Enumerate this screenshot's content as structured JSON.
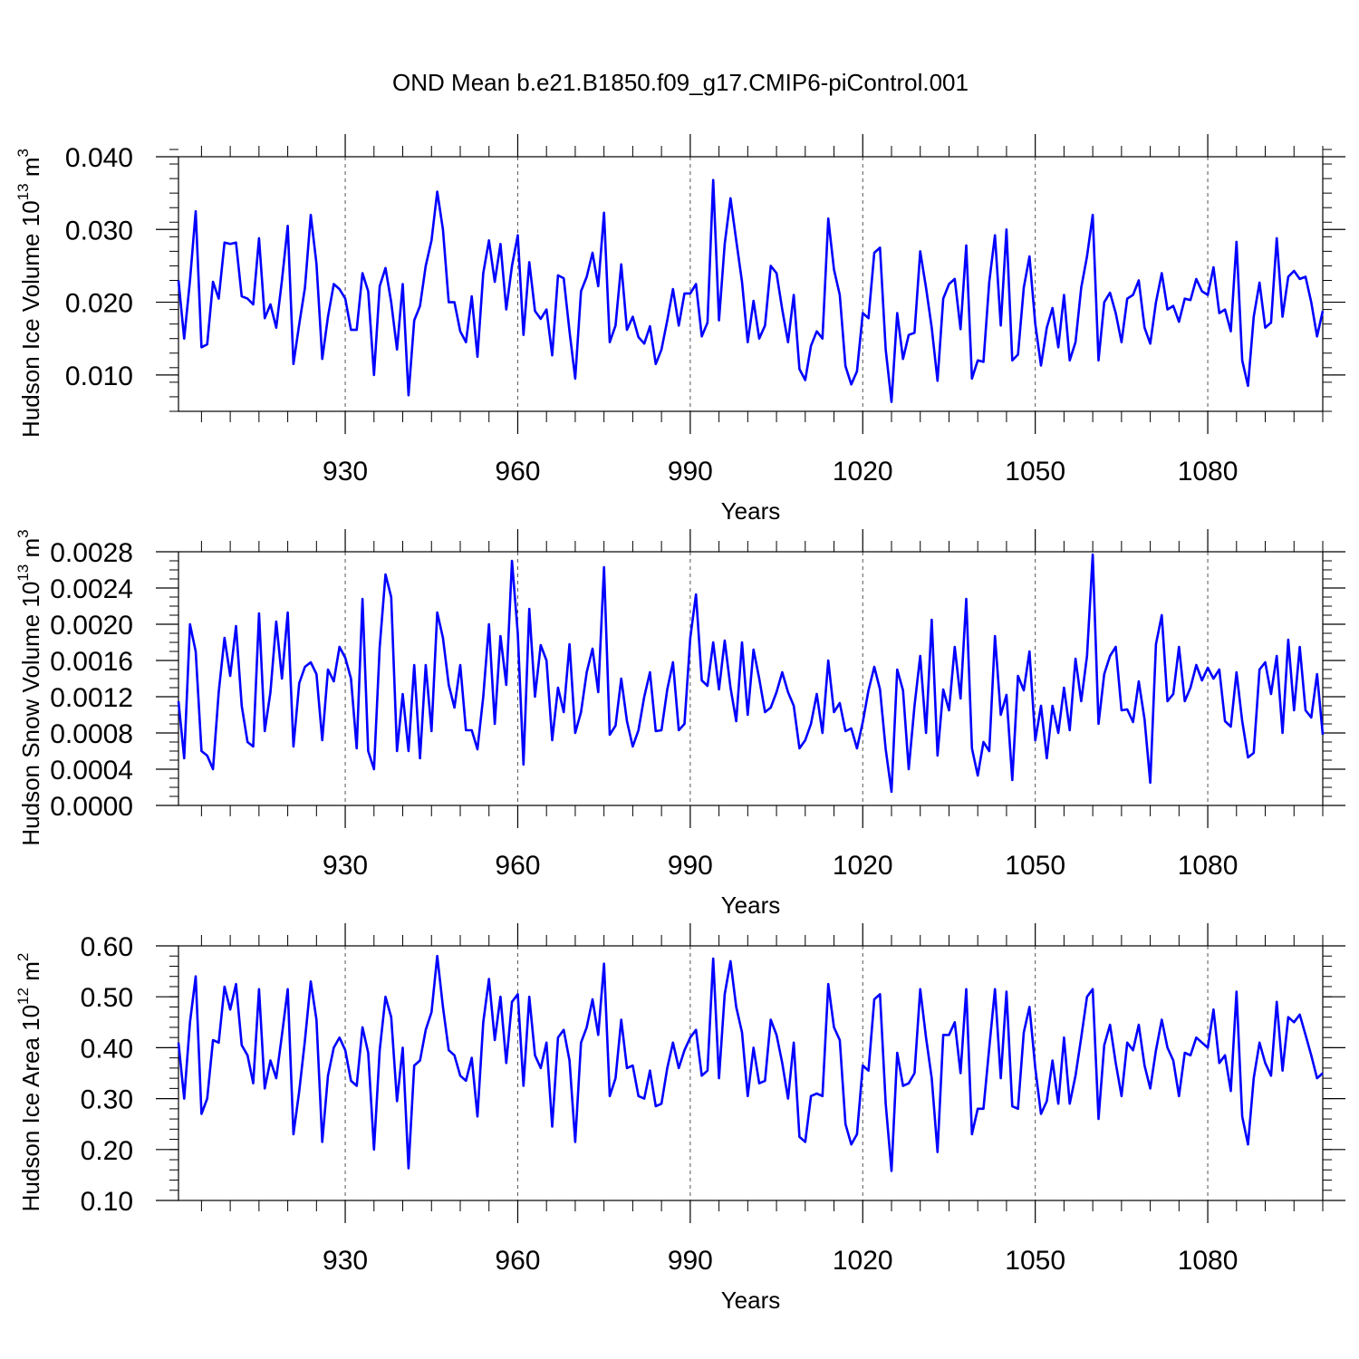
{
  "figure_title": "OND Mean b.e21.B1850.f09_g17.CMIP6-piControl.001",
  "colors": {
    "line": "#0000ff",
    "axes": "#000000",
    "grid": "#555555"
  },
  "chart_data": [
    {
      "type": "line",
      "title": "OND Mean b.e21.B1850.f09_g17.CMIP6-piControl.001",
      "ylabel": "Hudson Ice Volume 10",
      "ylabel_sup": "13",
      "ylabel_unit": " m",
      "ylabel_unit_sup": "3",
      "xlabel": "Years",
      "xlim": [
        901,
        1100
      ],
      "ylim": [
        0.005,
        0.04
      ],
      "x_ticks": [
        930,
        960,
        990,
        1020,
        1050,
        1080
      ],
      "x_tick_labels": [
        "930",
        "960",
        "990",
        "1020",
        "1050",
        "1080"
      ],
      "y_ticks": [
        0.01,
        0.02,
        0.03,
        0.04
      ],
      "y_tick_labels": [
        "0.010",
        "0.020",
        "0.030",
        "0.040"
      ],
      "y_minor_step": 0.002,
      "x_start": 901,
      "series": [
        {
          "name": "Hudson Ice Volume",
          "values": [
            0.023,
            0.015,
            0.023,
            0.0325,
            0.0138,
            0.0142,
            0.0228,
            0.0205,
            0.0282,
            0.028,
            0.0282,
            0.0208,
            0.0205,
            0.0197,
            0.0288,
            0.0178,
            0.0197,
            0.0165,
            0.023,
            0.0305,
            0.0115,
            0.017,
            0.022,
            0.032,
            0.0253,
            0.0122,
            0.018,
            0.0225,
            0.0218,
            0.0205,
            0.0162,
            0.0162,
            0.024,
            0.0215,
            0.01,
            0.0222,
            0.0247,
            0.02,
            0.0135,
            0.0225,
            0.0072,
            0.0175,
            0.0195,
            0.025,
            0.0285,
            0.0352,
            0.03,
            0.02,
            0.02,
            0.016,
            0.0145,
            0.0208,
            0.0125,
            0.024,
            0.0285,
            0.0228,
            0.028,
            0.019,
            0.025,
            0.0292,
            0.0155,
            0.0255,
            0.0188,
            0.0177,
            0.019,
            0.0127,
            0.0237,
            0.0233,
            0.016,
            0.0095,
            0.0215,
            0.0235,
            0.0268,
            0.0222,
            0.0323,
            0.0145,
            0.0168,
            0.0252,
            0.0162,
            0.018,
            0.0152,
            0.0143,
            0.0167,
            0.0115,
            0.0135,
            0.0175,
            0.0218,
            0.0168,
            0.0212,
            0.0212,
            0.0225,
            0.0153,
            0.0172,
            0.0368,
            0.0175,
            0.028,
            0.0343,
            0.0285,
            0.0228,
            0.0145,
            0.0202,
            0.015,
            0.0168,
            0.025,
            0.024,
            0.019,
            0.0145,
            0.021,
            0.0108,
            0.0093,
            0.014,
            0.016,
            0.015,
            0.0315,
            0.0245,
            0.021,
            0.0112,
            0.0087,
            0.0105,
            0.0185,
            0.0178,
            0.0268,
            0.0275,
            0.0135,
            0.0063,
            0.0185,
            0.0122,
            0.0155,
            0.0158,
            0.027,
            0.022,
            0.0165,
            0.0092,
            0.0205,
            0.0225,
            0.0232,
            0.0163,
            0.0278,
            0.0095,
            0.012,
            0.0118,
            0.0228,
            0.0292,
            0.0168,
            0.03,
            0.012,
            0.0128,
            0.022,
            0.0263,
            0.017,
            0.0113,
            0.0165,
            0.0192,
            0.0138,
            0.021,
            0.012,
            0.0145,
            0.022,
            0.0263,
            0.032,
            0.012,
            0.02,
            0.0213,
            0.0185,
            0.0145,
            0.0205,
            0.021,
            0.023,
            0.0165,
            0.0143,
            0.02,
            0.024,
            0.019,
            0.0195,
            0.0173,
            0.0205,
            0.0203,
            0.0232,
            0.0215,
            0.021,
            0.0248,
            0.0185,
            0.019,
            0.016,
            0.0283,
            0.012,
            0.0085,
            0.018,
            0.0227,
            0.0165,
            0.0172,
            0.0288,
            0.018,
            0.0235,
            0.0243,
            0.0232,
            0.0235,
            0.02,
            0.0153,
            0.0188
          ]
        }
      ]
    },
    {
      "type": "line",
      "ylabel": "Hudson Snow Volume 10",
      "ylabel_sup": "13",
      "ylabel_unit": " m",
      "ylabel_unit_sup": "3",
      "xlabel": "Years",
      "xlim": [
        901,
        1100
      ],
      "ylim": [
        0,
        0.0028
      ],
      "x_ticks": [
        930,
        960,
        990,
        1020,
        1050,
        1080
      ],
      "x_tick_labels": [
        "930",
        "960",
        "990",
        "1020",
        "1050",
        "1080"
      ],
      "y_ticks": [
        0,
        0.0004,
        0.0008,
        0.0012,
        0.0016,
        0.002,
        0.0024,
        0.0028
      ],
      "y_tick_labels": [
        "0.0000",
        "0.0004",
        "0.0008",
        "0.0012",
        "0.0016",
        "0.0020",
        "0.0024",
        "0.0028"
      ],
      "y_minor_step": 0.0001,
      "x_start": 901,
      "series": [
        {
          "name": "Hudson Snow Volume",
          "values": [
            0.00115,
            0.00052,
            0.002,
            0.0017,
            0.0006,
            0.00055,
            0.0004,
            0.00125,
            0.00185,
            0.00143,
            0.00198,
            0.0011,
            0.0007,
            0.00065,
            0.00212,
            0.00082,
            0.00125,
            0.00203,
            0.0014,
            0.00213,
            0.00065,
            0.00135,
            0.00153,
            0.00158,
            0.00145,
            0.00072,
            0.0015,
            0.00137,
            0.00175,
            0.00163,
            0.0014,
            0.00063,
            0.00228,
            0.0006,
            0.0004,
            0.00175,
            0.00255,
            0.0023,
            0.0006,
            0.00123,
            0.0006,
            0.00155,
            0.00052,
            0.00155,
            0.00082,
            0.00213,
            0.00185,
            0.00133,
            0.00108,
            0.00155,
            0.00083,
            0.00083,
            0.00062,
            0.0012,
            0.002,
            0.0009,
            0.00187,
            0.00133,
            0.0027,
            0.0019,
            0.00045,
            0.00217,
            0.0012,
            0.00177,
            0.0016,
            0.00072,
            0.0013,
            0.00103,
            0.00178,
            0.0008,
            0.00103,
            0.00147,
            0.00173,
            0.00125,
            0.00263,
            0.00078,
            0.00088,
            0.0014,
            0.00093,
            0.00065,
            0.00083,
            0.0012,
            0.00147,
            0.00082,
            0.00083,
            0.00128,
            0.00158,
            0.00083,
            0.0009,
            0.00185,
            0.00233,
            0.00138,
            0.00132,
            0.0018,
            0.00128,
            0.00182,
            0.0013,
            0.00093,
            0.0018,
            0.001,
            0.00172,
            0.0014,
            0.00103,
            0.00108,
            0.00125,
            0.00147,
            0.00125,
            0.0011,
            0.00063,
            0.00072,
            0.0009,
            0.00123,
            0.0008,
            0.0016,
            0.00103,
            0.00113,
            0.00082,
            0.00085,
            0.00063,
            0.00092,
            0.00127,
            0.00153,
            0.00128,
            0.00062,
            0.00015,
            0.0015,
            0.00127,
            0.0004,
            0.0011,
            0.00165,
            0.0008,
            0.00205,
            0.00055,
            0.00128,
            0.00105,
            0.00175,
            0.00118,
            0.00228,
            0.00063,
            0.00033,
            0.0007,
            0.0006,
            0.00187,
            0.001,
            0.00122,
            0.00028,
            0.00143,
            0.00127,
            0.0017,
            0.00072,
            0.0011,
            0.00052,
            0.0011,
            0.0008,
            0.0013,
            0.00083,
            0.00162,
            0.00115,
            0.00165,
            0.00277,
            0.0009,
            0.00145,
            0.00165,
            0.00175,
            0.00105,
            0.00106,
            0.00092,
            0.00137,
            0.00095,
            0.00025,
            0.00178,
            0.0021,
            0.00115,
            0.00123,
            0.00175,
            0.00115,
            0.0013,
            0.00155,
            0.00138,
            0.00152,
            0.0014,
            0.0015,
            0.00093,
            0.00087,
            0.00147,
            0.00093,
            0.00053,
            0.00058,
            0.0015,
            0.00158,
            0.00123,
            0.00165,
            0.0008,
            0.00183,
            0.00105,
            0.00175,
            0.00105,
            0.00097,
            0.00145,
            0.00078
          ]
        }
      ]
    },
    {
      "type": "line",
      "ylabel": "Hudson Ice Area 10",
      "ylabel_sup": "12",
      "ylabel_unit": " m",
      "ylabel_unit_sup": "2",
      "xlabel": "Years",
      "xlim": [
        901,
        1100
      ],
      "ylim": [
        0.1,
        0.6
      ],
      "x_ticks": [
        930,
        960,
        990,
        1020,
        1050,
        1080
      ],
      "x_tick_labels": [
        "930",
        "960",
        "990",
        "1020",
        "1050",
        "1080"
      ],
      "y_ticks": [
        0.1,
        0.2,
        0.3,
        0.4,
        0.5,
        0.6
      ],
      "y_tick_labels": [
        "0.10",
        "0.20",
        "0.30",
        "0.40",
        "0.50",
        "0.60"
      ],
      "y_minor_step": 0.02,
      "x_start": 901,
      "series": [
        {
          "name": "Hudson Ice Area",
          "values": [
            0.41,
            0.3,
            0.45,
            0.54,
            0.27,
            0.3,
            0.415,
            0.41,
            0.52,
            0.475,
            0.525,
            0.405,
            0.385,
            0.33,
            0.515,
            0.32,
            0.375,
            0.34,
            0.425,
            0.515,
            0.23,
            0.315,
            0.415,
            0.53,
            0.455,
            0.215,
            0.345,
            0.4,
            0.42,
            0.395,
            0.335,
            0.325,
            0.44,
            0.39,
            0.2,
            0.395,
            0.5,
            0.46,
            0.295,
            0.4,
            0.163,
            0.365,
            0.375,
            0.435,
            0.47,
            0.58,
            0.48,
            0.395,
            0.385,
            0.345,
            0.335,
            0.38,
            0.265,
            0.45,
            0.535,
            0.415,
            0.5,
            0.37,
            0.49,
            0.505,
            0.325,
            0.5,
            0.385,
            0.36,
            0.41,
            0.245,
            0.42,
            0.435,
            0.375,
            0.215,
            0.41,
            0.44,
            0.495,
            0.425,
            0.565,
            0.305,
            0.34,
            0.455,
            0.36,
            0.365,
            0.305,
            0.3,
            0.355,
            0.285,
            0.29,
            0.36,
            0.41,
            0.36,
            0.395,
            0.42,
            0.435,
            0.345,
            0.355,
            0.575,
            0.34,
            0.505,
            0.57,
            0.48,
            0.43,
            0.305,
            0.4,
            0.33,
            0.335,
            0.455,
            0.425,
            0.37,
            0.3,
            0.41,
            0.225,
            0.215,
            0.305,
            0.31,
            0.305,
            0.525,
            0.44,
            0.415,
            0.25,
            0.21,
            0.23,
            0.365,
            0.355,
            0.495,
            0.505,
            0.29,
            0.158,
            0.39,
            0.325,
            0.33,
            0.35,
            0.515,
            0.42,
            0.34,
            0.195,
            0.425,
            0.425,
            0.45,
            0.35,
            0.515,
            0.23,
            0.28,
            0.28,
            0.4,
            0.515,
            0.34,
            0.51,
            0.285,
            0.28,
            0.43,
            0.48,
            0.36,
            0.27,
            0.295,
            0.375,
            0.29,
            0.42,
            0.29,
            0.345,
            0.42,
            0.5,
            0.515,
            0.26,
            0.405,
            0.445,
            0.37,
            0.305,
            0.41,
            0.395,
            0.445,
            0.365,
            0.32,
            0.395,
            0.455,
            0.4,
            0.375,
            0.305,
            0.39,
            0.385,
            0.42,
            0.41,
            0.4,
            0.475,
            0.37,
            0.385,
            0.315,
            0.51,
            0.265,
            0.21,
            0.34,
            0.41,
            0.37,
            0.345,
            0.49,
            0.355,
            0.46,
            0.45,
            0.465,
            0.425,
            0.385,
            0.34,
            0.35
          ]
        }
      ]
    }
  ]
}
